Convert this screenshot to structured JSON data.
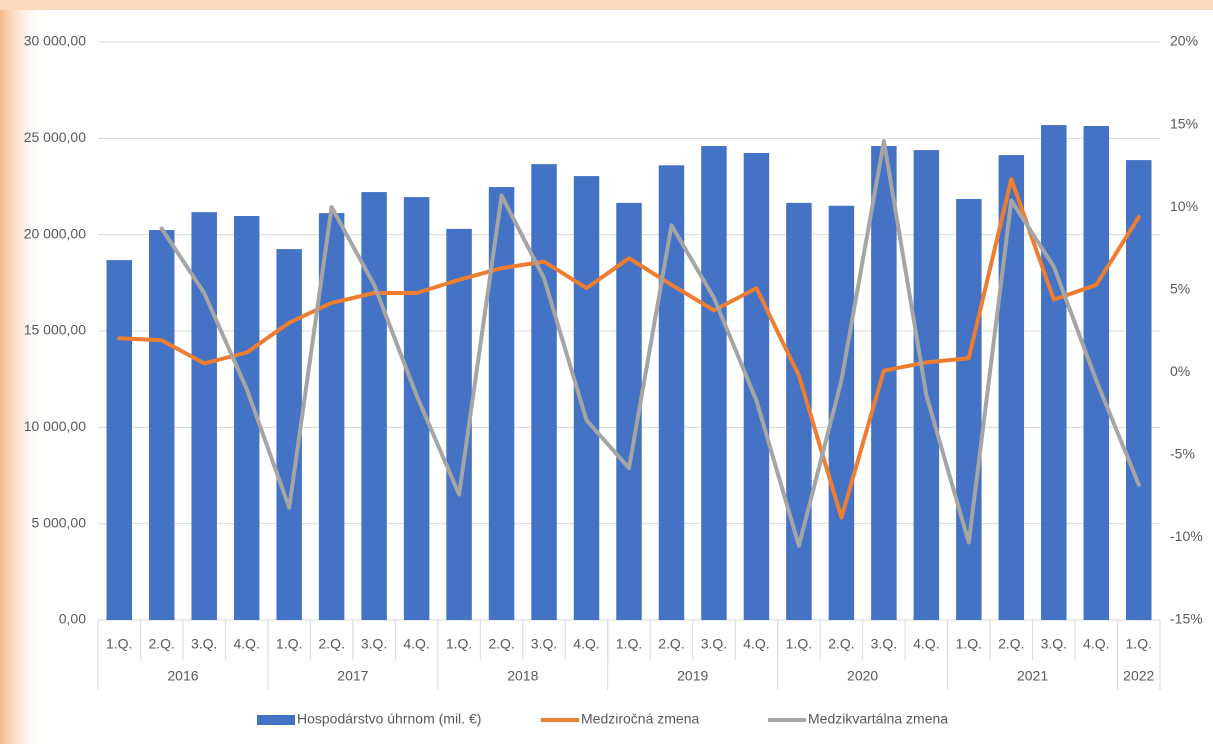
{
  "chart_data": {
    "type": "bar-line",
    "categories": [
      "1.Q.",
      "2.Q.",
      "3.Q.",
      "4.Q.",
      "1.Q.",
      "2.Q.",
      "3.Q.",
      "4.Q.",
      "1.Q.",
      "2.Q.",
      "3.Q.",
      "4.Q.",
      "1.Q.",
      "2.Q.",
      "3.Q.",
      "4.Q.",
      "1.Q.",
      "2.Q.",
      "3.Q.",
      "4.Q.",
      "1.Q.",
      "2.Q.",
      "3.Q.",
      "4.Q.",
      "1.Q."
    ],
    "x_groups": [
      {
        "label": "2016",
        "span": 4
      },
      {
        "label": "2017",
        "span": 4
      },
      {
        "label": "2018",
        "span": 4
      },
      {
        "label": "2019",
        "span": 4
      },
      {
        "label": "2020",
        "span": 4
      },
      {
        "label": "2021",
        "span": 4
      },
      {
        "label": "2022",
        "span": 1
      }
    ],
    "series": [
      {
        "name": "Hospodárstvo úhrnom (mil. €)",
        "type": "bar",
        "color": "#4472c4",
        "values": [
          18680,
          20240,
          21170,
          20970,
          19250,
          21120,
          22210,
          21950,
          20300,
          22470,
          23660,
          23040,
          21650,
          23600,
          24600,
          24240,
          21650,
          21500,
          24600,
          24390,
          21850,
          24130,
          25690,
          25640,
          23870
        ]
      },
      {
        "name": "Medziročná zmena",
        "type": "line",
        "axis": "y2",
        "color": "#ed7d31",
        "values": [
          2.06,
          1.94,
          0.54,
          1.2,
          3.0,
          4.2,
          4.8,
          4.8,
          5.6,
          6.3,
          6.7,
          5.1,
          6.9,
          5.3,
          3.75,
          5.1,
          -0.2,
          -8.8,
          0.1,
          0.6,
          0.85,
          11.7,
          4.4,
          5.3,
          9.4
        ]
      },
      {
        "name": "Medzikvartálna zmena",
        "type": "line",
        "axis": "y2",
        "color": "#a5a5a5",
        "values": [
          null,
          8.7,
          4.8,
          -1.0,
          -8.2,
          10.0,
          5.3,
          -1.4,
          -7.4,
          10.7,
          5.7,
          -2.9,
          -5.8,
          8.9,
          4.5,
          -1.7,
          -10.5,
          -0.5,
          14.0,
          -1.4,
          -10.3,
          10.4,
          6.4,
          -0.5,
          -6.8
        ]
      }
    ],
    "ylim": [
      0,
      30000
    ],
    "yticks": [
      {
        "value": 0,
        "label": "0,00"
      },
      {
        "value": 5000,
        "label": "5 000,00"
      },
      {
        "value": 10000,
        "label": "10 000,00"
      },
      {
        "value": 15000,
        "label": "15 000,00"
      },
      {
        "value": 20000,
        "label": "20 000,00"
      },
      {
        "value": 25000,
        "label": "25 000,00"
      },
      {
        "value": 30000,
        "label": "30 000,00"
      }
    ],
    "y2lim": [
      -15,
      20
    ],
    "y2ticks": [
      {
        "value": -15,
        "label": "-15%"
      },
      {
        "value": -10,
        "label": "-10%"
      },
      {
        "value": -5,
        "label": "-5%"
      },
      {
        "value": 0,
        "label": "0%"
      },
      {
        "value": 5,
        "label": "5%"
      },
      {
        "value": 10,
        "label": "10%"
      },
      {
        "value": 15,
        "label": "15%"
      },
      {
        "value": 20,
        "label": "20%"
      }
    ],
    "grid": true,
    "legend": "bottom"
  }
}
